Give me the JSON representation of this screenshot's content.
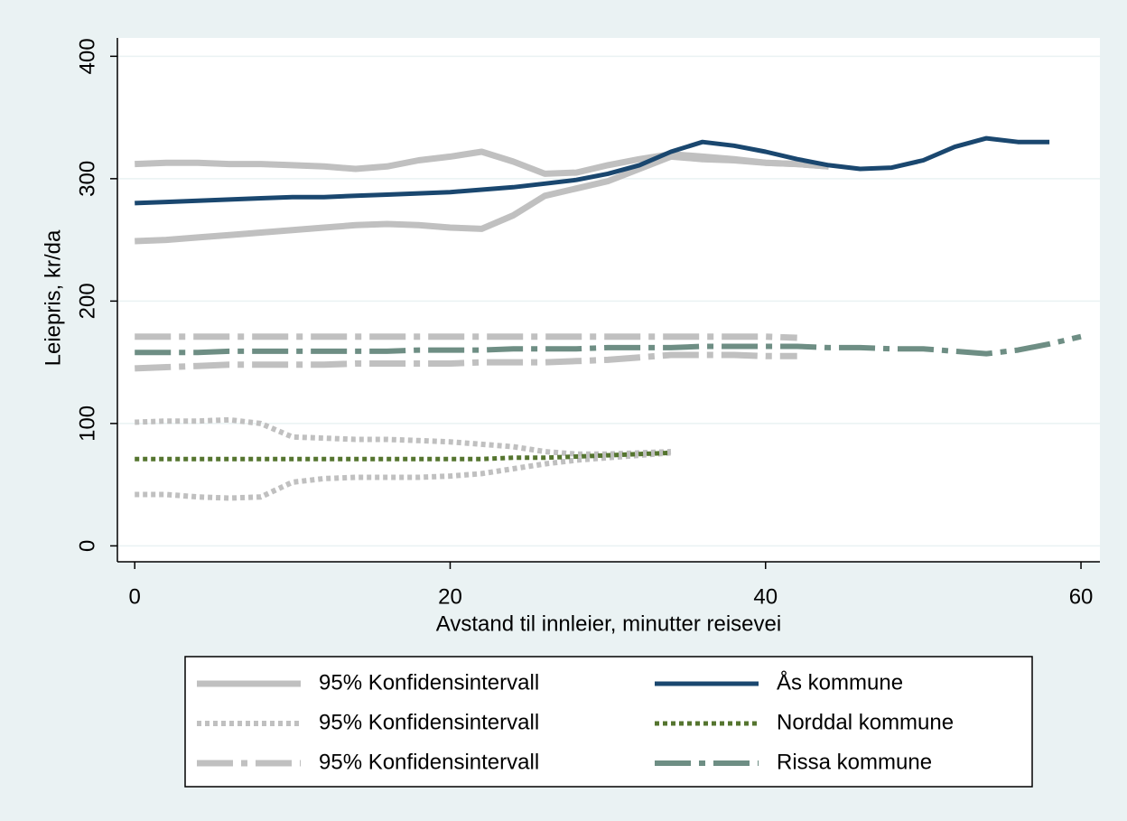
{
  "chart_data": {
    "type": "line",
    "x_label": "Avstand til innleier, minutter reisevei",
    "y_label": "Leiepris, kr/da",
    "xlim": [
      -1.1,
      61.2
    ],
    "ylim": [
      -13,
      415
    ],
    "xticks": [
      0,
      20,
      40,
      60
    ],
    "yticks": [
      0,
      100,
      200,
      300,
      400
    ],
    "grid": true,
    "x": [
      0,
      2,
      4,
      6,
      8,
      10,
      12,
      14,
      16,
      18,
      20,
      22,
      24,
      26,
      28,
      30,
      32,
      34,
      36,
      38,
      40,
      42,
      44,
      46,
      48,
      50,
      52,
      54,
      56,
      58,
      60
    ],
    "series": [
      {
        "name": "95% Konfidensintervall",
        "color": "#c0c0c0",
        "style": "solid",
        "width": 7,
        "values": [
          312,
          313,
          313,
          312,
          312,
          311,
          310,
          308,
          310,
          315,
          318,
          322,
          314,
          304,
          305,
          311,
          316,
          320,
          318,
          316,
          313,
          312,
          310,
          null,
          null,
          null,
          null,
          null,
          null,
          null,
          null
        ]
      },
      {
        "name": null,
        "color": "#c0c0c0",
        "style": "solid",
        "width": 7,
        "values": [
          249,
          250,
          252,
          254,
          256,
          258,
          260,
          262,
          263,
          262,
          260,
          259,
          270,
          286,
          292,
          298,
          308,
          318,
          316,
          315,
          313,
          312,
          310,
          null,
          null,
          null,
          null,
          null,
          null,
          null,
          null
        ]
      },
      {
        "name": "95% Konfidensintervall",
        "color": "#c0c0c0",
        "style": "dot",
        "width": 6,
        "values": [
          101,
          102,
          102,
          103,
          100,
          89,
          88,
          87,
          87,
          86,
          85,
          83,
          81,
          77,
          75,
          75,
          76,
          77,
          null,
          null,
          null,
          null,
          null,
          null,
          null,
          null,
          null,
          null,
          null,
          null,
          null
        ]
      },
      {
        "name": null,
        "color": "#c0c0c0",
        "style": "dot",
        "width": 6,
        "values": [
          42,
          42,
          40,
          39,
          40,
          52,
          55,
          56,
          56,
          56,
          57,
          59,
          63,
          67,
          70,
          72,
          74,
          76,
          null,
          null,
          null,
          null,
          null,
          null,
          null,
          null,
          null,
          null,
          null,
          null,
          null
        ]
      },
      {
        "name": "95% Konfidensintervall",
        "color": "#c0c0c0",
        "style": "dashdot",
        "width": 7,
        "values": [
          171,
          171,
          171,
          171,
          171,
          171,
          171,
          171,
          171,
          171,
          171,
          171,
          171,
          171,
          171,
          171,
          171,
          171,
          171,
          171,
          171,
          170,
          null,
          null,
          null,
          null,
          null,
          null,
          null,
          null,
          null
        ]
      },
      {
        "name": null,
        "color": "#c0c0c0",
        "style": "dashdot",
        "width": 7,
        "values": [
          145,
          146,
          147,
          148,
          148,
          148,
          148,
          149,
          149,
          149,
          149,
          150,
          150,
          150,
          151,
          152,
          154,
          156,
          156,
          156,
          155,
          155,
          null,
          null,
          null,
          null,
          null,
          null,
          null,
          null,
          null
        ]
      },
      {
        "name": "Ås kommune",
        "color": "#1a476f",
        "style": "solid",
        "width": 5,
        "values": [
          280,
          281,
          282,
          283,
          284,
          285,
          285,
          286,
          287,
          288,
          289,
          291,
          293,
          296,
          299,
          304,
          311,
          322,
          330,
          327,
          322,
          316,
          311,
          308,
          309,
          315,
          326,
          333,
          330,
          330,
          null
        ]
      },
      {
        "name": "Norddal kommune",
        "color": "#55752f",
        "style": "dot",
        "width": 5,
        "values": [
          71,
          71,
          71,
          71,
          71,
          71,
          71,
          71,
          71,
          71,
          71,
          71,
          72,
          72,
          73,
          74,
          75,
          76,
          null,
          null,
          null,
          null,
          null,
          null,
          null,
          null,
          null,
          null,
          null,
          null,
          null
        ]
      },
      {
        "name": "Rissa kommune",
        "color": "#6e8e84",
        "style": "dashdot",
        "width": 6,
        "values": [
          158,
          158,
          158,
          159,
          159,
          159,
          159,
          159,
          159,
          160,
          160,
          160,
          161,
          161,
          161,
          162,
          162,
          162,
          163,
          163,
          163,
          163,
          162,
          162,
          161,
          161,
          159,
          157,
          160,
          165,
          171
        ]
      }
    ],
    "legend_order": [
      0,
      6,
      2,
      7,
      4,
      8
    ]
  }
}
